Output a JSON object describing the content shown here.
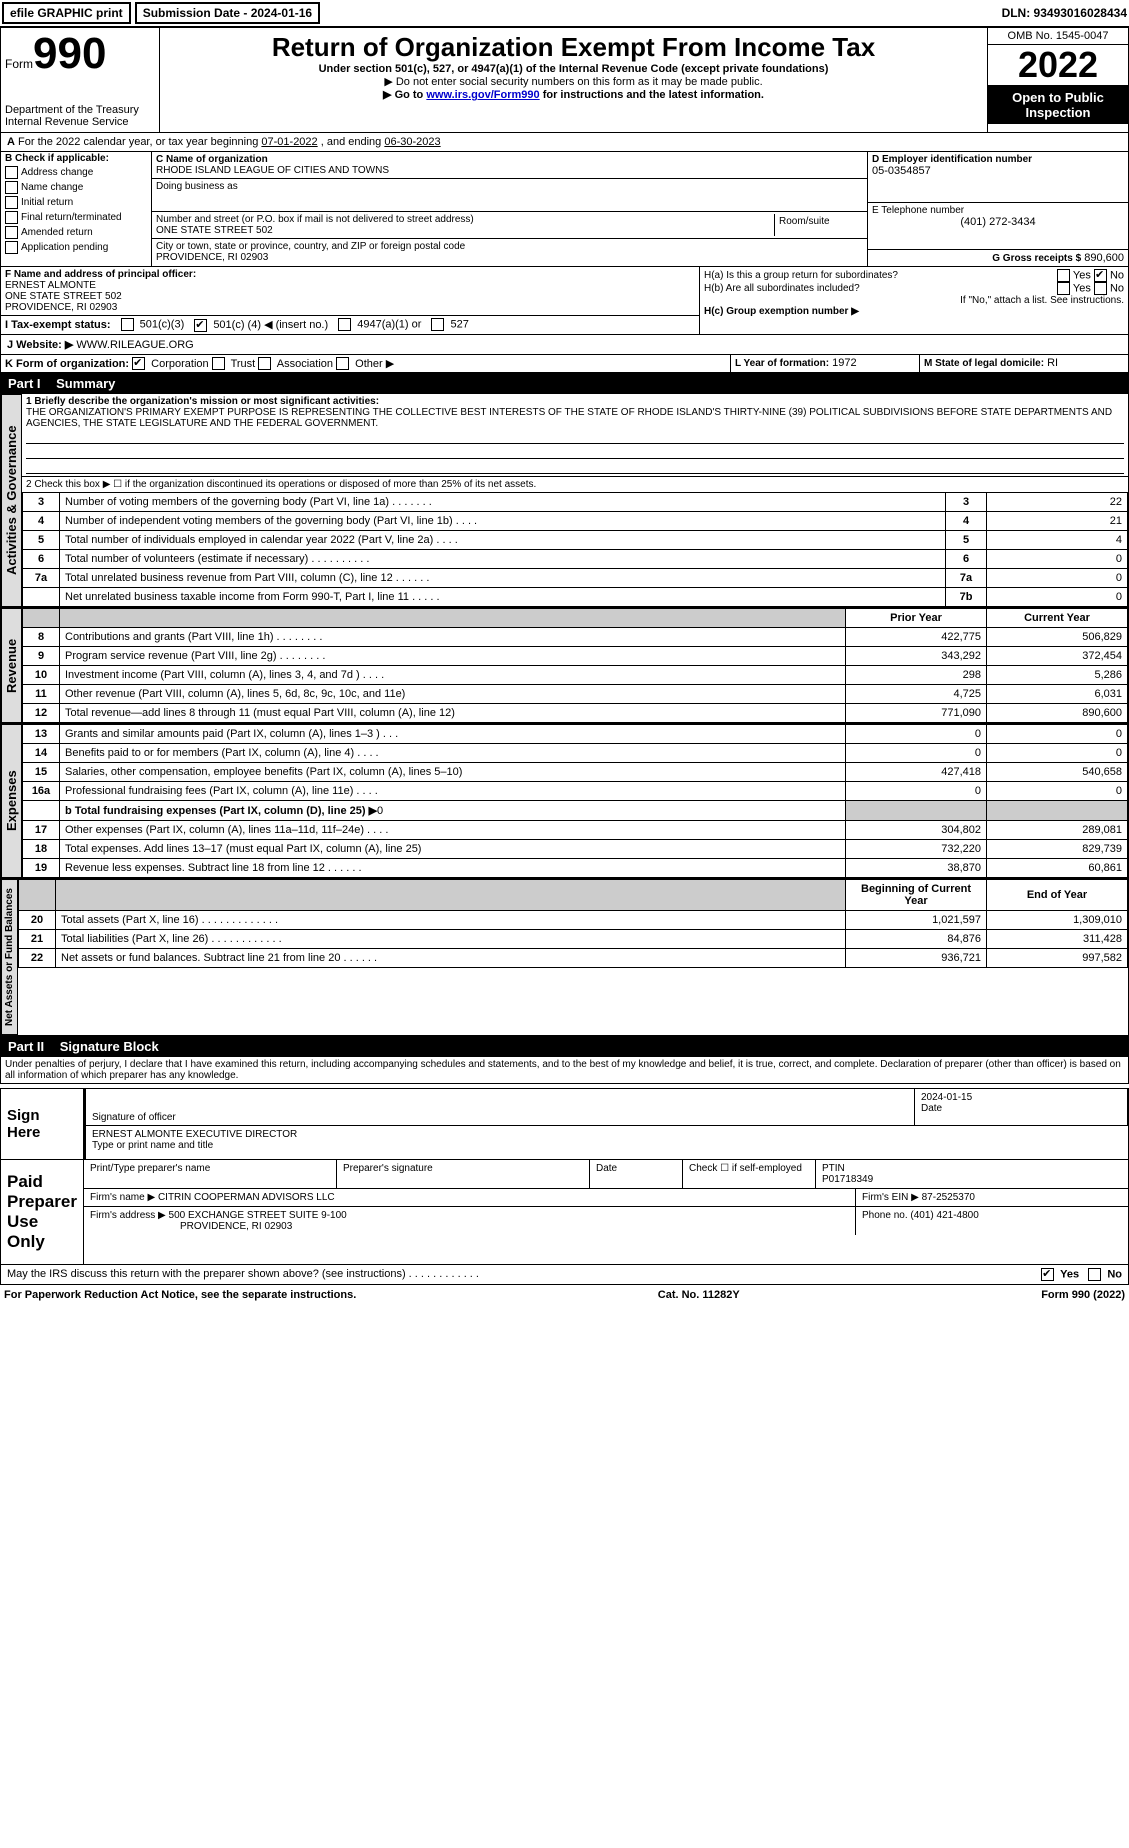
{
  "topbar": {
    "efile": "efile GRAPHIC print",
    "sub_label": "Submission Date - 2024-01-16",
    "dln": "DLN: 93493016028434"
  },
  "header": {
    "form_word": "Form",
    "form_num": "990",
    "dept": "Department of the Treasury",
    "irs": "Internal Revenue Service",
    "title": "Return of Organization Exempt From Income Tax",
    "sub1": "Under section 501(c), 527, or 4947(a)(1) of the Internal Revenue Code (except private foundations)",
    "sub2": "▶ Do not enter social security numbers on this form as it may be made public.",
    "sub3_pre": "▶ Go to ",
    "sub3_link": "www.irs.gov/Form990",
    "sub3_post": " for instructions and the latest information.",
    "omb": "OMB No. 1545-0047",
    "year": "2022",
    "otp": "Open to Public Inspection"
  },
  "line_a": {
    "text_pre": "For the 2022 calendar year, or tax year beginning ",
    "begin": "07-01-2022",
    "mid": " , and ending ",
    "end": "06-30-2023"
  },
  "col_b": {
    "hdr": "B Check if applicable:",
    "items": [
      "Address change",
      "Name change",
      "Initial return",
      "Final return/terminated",
      "Amended return",
      "Application pending"
    ]
  },
  "col_c": {
    "name_lbl": "C Name of organization",
    "name": "RHODE ISLAND LEAGUE OF CITIES AND TOWNS",
    "dba_lbl": "Doing business as",
    "addr_lbl": "Number and street (or P.O. box if mail is not delivered to street address)",
    "room_lbl": "Room/suite",
    "addr": "ONE STATE STREET 502",
    "city_lbl": "City or town, state or province, country, and ZIP or foreign postal code",
    "city": "PROVIDENCE, RI  02903"
  },
  "col_d": {
    "d_lbl": "D Employer identification number",
    "ein": "05-0354857",
    "e_lbl": "E Telephone number",
    "phone": "(401) 272-3434",
    "g_lbl": "G Gross receipts $",
    "g_val": "890,600"
  },
  "fh": {
    "f_lbl": "F Name and address of principal officer:",
    "f_name": "ERNEST ALMONTE",
    "f_addr1": "ONE STATE STREET 502",
    "f_addr2": "PROVIDENCE, RI  02903",
    "ha": "H(a)  Is this a group return for subordinates?",
    "hb": "H(b)  Are all subordinates included?",
    "hb_note": "If \"No,\" attach a list. See instructions.",
    "hc": "H(c)  Group exemption number ▶",
    "yes": "Yes",
    "no": "No"
  },
  "tax_status": {
    "i_lbl": "I  Tax-exempt status:",
    "c3": "501(c)(3)",
    "c_pre": "501(c) (",
    "c_num": "4",
    "c_post": ") ◀ (insert no.)",
    "a1": "4947(a)(1) or",
    "s527": "527"
  },
  "j": {
    "lbl": "J  Website: ▶",
    "val": "WWW.RILEAGUE.ORG"
  },
  "k": {
    "lbl": "K Form of organization:",
    "corp": "Corporation",
    "trust": "Trust",
    "assoc": "Association",
    "other": "Other ▶"
  },
  "l": {
    "lbl": "L Year of formation:",
    "val": "1972"
  },
  "m": {
    "lbl": "M State of legal domicile:",
    "val": "RI"
  },
  "part1": {
    "num": "Part I",
    "title": "Summary"
  },
  "gov": {
    "sidebar": "Activities & Governance",
    "l1_lbl": "1  Briefly describe the organization's mission or most significant activities:",
    "l1_text": "THE ORGANIZATION'S PRIMARY EXEMPT PURPOSE IS REPRESENTING THE COLLECTIVE BEST INTERESTS OF THE STATE OF RHODE ISLAND'S THIRTY-NINE (39) POLITICAL SUBDIVISIONS BEFORE STATE DEPARTMENTS AND AGENCIES, THE STATE LEGISLATURE AND THE FEDERAL GOVERNMENT.",
    "l2": "2  Check this box ▶ ☐ if the organization discontinued its operations or disposed of more than 25% of its net assets.",
    "rows": [
      {
        "n": "3",
        "d": "Number of voting members of the governing body (Part VI, line 1a)  .    .    .    .    .    .    .",
        "b": "3",
        "v": "22"
      },
      {
        "n": "4",
        "d": "Number of independent voting members of the governing body (Part VI, line 1b)  .    .    .    .",
        "b": "4",
        "v": "21"
      },
      {
        "n": "5",
        "d": "Total number of individuals employed in calendar year 2022 (Part V, line 2a)  .    .    .    .",
        "b": "5",
        "v": "4"
      },
      {
        "n": "6",
        "d": "Total number of volunteers (estimate if necessary)  .    .    .    .    .    .    .    .    .    .",
        "b": "6",
        "v": "0"
      },
      {
        "n": "7a",
        "d": "Total unrelated business revenue from Part VIII, column (C), line 12  .    .    .    .    .    .",
        "b": "7a",
        "v": "0"
      },
      {
        "n": "",
        "d": "Net unrelated business taxable income from Form 990-T, Part I, line 11  .    .    .    .    .",
        "b": "7b",
        "v": "0"
      }
    ]
  },
  "rev": {
    "sidebar": "Revenue",
    "hdr_prior": "Prior Year",
    "hdr_curr": "Current Year",
    "rows": [
      {
        "n": "8",
        "d": "Contributions and grants (Part VIII, line 1h)  .    .    .    .    .    .    .    .",
        "p": "422,775",
        "c": "506,829"
      },
      {
        "n": "9",
        "d": "Program service revenue (Part VIII, line 2g)  .    .    .    .    .    .    .    .",
        "p": "343,292",
        "c": "372,454"
      },
      {
        "n": "10",
        "d": "Investment income (Part VIII, column (A), lines 3, 4, and 7d )  .    .    .    .",
        "p": "298",
        "c": "5,286"
      },
      {
        "n": "11",
        "d": "Other revenue (Part VIII, column (A), lines 5, 6d, 8c, 9c, 10c, and 11e)",
        "p": "4,725",
        "c": "6,031"
      },
      {
        "n": "12",
        "d": "Total revenue—add lines 8 through 11 (must equal Part VIII, column (A), line 12)",
        "p": "771,090",
        "c": "890,600"
      }
    ]
  },
  "exp": {
    "sidebar": "Expenses",
    "rows": [
      {
        "n": "13",
        "d": "Grants and similar amounts paid (Part IX, column (A), lines 1–3 )  .    .    .",
        "p": "0",
        "c": "0"
      },
      {
        "n": "14",
        "d": "Benefits paid to or for members (Part IX, column (A), line 4)  .    .    .    .",
        "p": "0",
        "c": "0"
      },
      {
        "n": "15",
        "d": "Salaries, other compensation, employee benefits (Part IX, column (A), lines 5–10)",
        "p": "427,418",
        "c": "540,658"
      },
      {
        "n": "16a",
        "d": "Professional fundraising fees (Part IX, column (A), line 11e)  .    .    .    .",
        "p": "0",
        "c": "0"
      }
    ],
    "l16b_pre": "b  Total fundraising expenses (Part IX, column (D), line 25) ▶",
    "l16b_val": "0",
    "rows2": [
      {
        "n": "17",
        "d": "Other expenses (Part IX, column (A), lines 11a–11d, 11f–24e)  .    .    .    .",
        "p": "304,802",
        "c": "289,081"
      },
      {
        "n": "18",
        "d": "Total expenses. Add lines 13–17 (must equal Part IX, column (A), line 25)",
        "p": "732,220",
        "c": "829,739"
      },
      {
        "n": "19",
        "d": "Revenue less expenses. Subtract line 18 from line 12  .    .    .    .    .    .",
        "p": "38,870",
        "c": "60,861"
      }
    ]
  },
  "net": {
    "sidebar": "Net Assets or Fund Balances",
    "hdr_beg": "Beginning of Current Year",
    "hdr_end": "End of Year",
    "rows": [
      {
        "n": "20",
        "d": "Total assets (Part X, line 16)  .    .    .    .    .    .    .    .    .    .    .    .    .",
        "p": "1,021,597",
        "c": "1,309,010"
      },
      {
        "n": "21",
        "d": "Total liabilities (Part X, line 26)  .    .    .    .    .    .    .    .    .    .    .    .",
        "p": "84,876",
        "c": "311,428"
      },
      {
        "n": "22",
        "d": "Net assets or fund balances. Subtract line 21 from line 20  .    .    .    .    .    .",
        "p": "936,721",
        "c": "997,582"
      }
    ]
  },
  "part2": {
    "num": "Part II",
    "title": "Signature Block"
  },
  "sig": {
    "decl": "Under penalties of perjury, I declare that I have examined this return, including accompanying schedules and statements, and to the best of my knowledge and belief, it is true, correct, and complete. Declaration of preparer (other than officer) is based on all information of which preparer has any knowledge.",
    "sign_here": "Sign Here",
    "sig_officer": "Signature of officer",
    "date": "Date",
    "sig_date": "2024-01-15",
    "name_title": "ERNEST ALMONTE  EXECUTIVE DIRECTOR",
    "type_lbl": "Type or print name and title",
    "paid": "Paid Preparer Use Only",
    "pt_name_lbl": "Print/Type preparer's name",
    "pt_sig_lbl": "Preparer's signature",
    "pt_date_lbl": "Date",
    "pt_check": "Check ☐ if self-employed",
    "ptin_lbl": "PTIN",
    "ptin": "P01718349",
    "firm_name_lbl": "Firm's name    ▶",
    "firm_name": "CITRIN COOPERMAN ADVISORS LLC",
    "firm_ein_lbl": "Firm's EIN ▶",
    "firm_ein": "87-2525370",
    "firm_addr_lbl": "Firm's address ▶",
    "firm_addr1": "500 EXCHANGE STREET SUITE 9-100",
    "firm_addr2": "PROVIDENCE, RI  02903",
    "phone_lbl": "Phone no.",
    "phone": "(401) 421-4800",
    "discuss": "May the IRS discuss this return with the preparer shown above? (see instructions)  .    .    .    .    .    .    .    .    .    .    .    .",
    "yes": "Yes",
    "no": "No"
  },
  "footer": {
    "pra": "For Paperwork Reduction Act Notice, see the separate instructions.",
    "cat": "Cat. No. 11282Y",
    "form": "Form 990 (2022)"
  }
}
